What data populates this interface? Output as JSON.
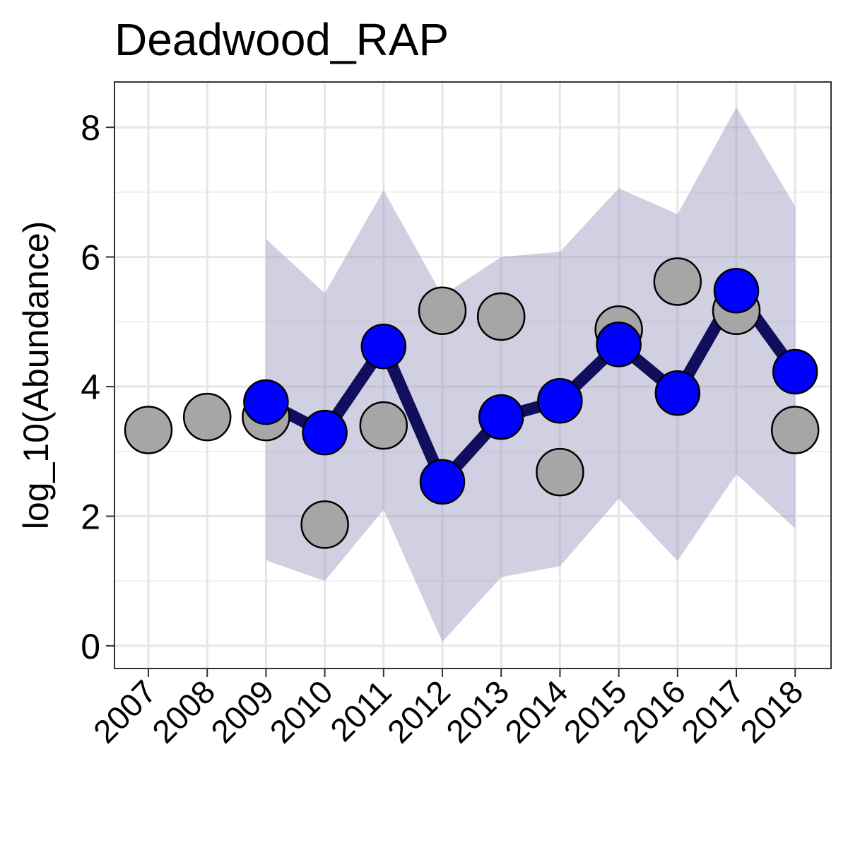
{
  "chart_data": {
    "type": "line",
    "title": "Deadwood_RAP",
    "xlabel": "",
    "ylabel": "log_10(Abundance)",
    "categories": [
      "2007",
      "2008",
      "2009",
      "2010",
      "2011",
      "2012",
      "2013",
      "2014",
      "2015",
      "2016",
      "2017",
      "2018"
    ],
    "ylim": [
      -0.35,
      8.7
    ],
    "yticks": [
      0,
      2,
      4,
      6,
      8
    ],
    "grid": true,
    "legend": "none",
    "series": [
      {
        "kind": "observed-points",
        "color": "#a6a6a6",
        "values": [
          3.33,
          3.53,
          3.53,
          1.87,
          3.4,
          5.17,
          5.08,
          2.68,
          4.88,
          5.62,
          5.17,
          3.33
        ]
      },
      {
        "kind": "estimate-line",
        "color": "#0000ff",
        "line_color": "#120e5e",
        "values": [
          null,
          null,
          3.76,
          3.29,
          4.62,
          2.53,
          3.53,
          3.78,
          4.65,
          3.9,
          5.48,
          4.23
        ]
      },
      {
        "kind": "confidence-band",
        "color": "#9696be",
        "upper": [
          null,
          null,
          6.28,
          5.44,
          7.03,
          5.4,
          6.0,
          6.08,
          7.06,
          6.66,
          8.31,
          6.78
        ],
        "lower": [
          null,
          null,
          1.32,
          1.0,
          2.1,
          0.06,
          1.06,
          1.23,
          2.27,
          1.31,
          2.65,
          1.81
        ]
      }
    ]
  }
}
